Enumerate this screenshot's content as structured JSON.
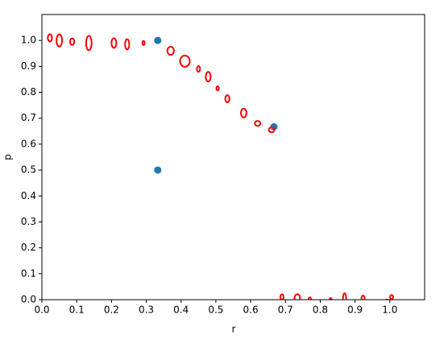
{
  "chart_data": {
    "type": "scatter",
    "xlabel": "r",
    "ylabel": "p",
    "xlim": [
      0,
      1.1
    ],
    "ylim": [
      0,
      1.1
    ],
    "xticks": [
      {
        "value": 0,
        "label": "0.0"
      },
      0.1,
      0.2,
      0.3,
      0.4,
      0.5,
      0.6,
      0.7,
      0.8,
      0.9,
      {
        "value": 1,
        "label": "1.0"
      }
    ],
    "yticks": [
      {
        "value": 0,
        "label": "0.0"
      },
      0.1,
      0.2,
      0.3,
      0.4,
      0.5,
      0.6,
      0.7,
      0.8,
      0.9,
      {
        "value": 1,
        "label": "1.0"
      }
    ],
    "points": {
      "color": "#1f77b4",
      "x": [
        0.333,
        0.333,
        0.667
      ],
      "y": [
        1.0,
        0.5,
        0.667
      ]
    },
    "ellipses": {
      "color": "#ff0000",
      "x": [
        0.023,
        0.05,
        0.087,
        0.135,
        0.207,
        0.245,
        0.292,
        0.37,
        0.411,
        0.45,
        0.478,
        0.505,
        0.533,
        0.58,
        0.62,
        0.66,
        0.69,
        0.734,
        0.77,
        0.83,
        0.87,
        0.923,
        0.992,
        1.005
      ],
      "y": [
        1.01,
        1.0,
        0.995,
        0.99,
        0.99,
        0.985,
        0.99,
        0.96,
        0.92,
        0.89,
        0.86,
        0.815,
        0.775,
        0.72,
        0.68,
        0.655,
        0.01,
        0.007,
        -0.005,
        -0.015,
        0.005,
        0.005,
        -0.01,
        0.01
      ],
      "width": [
        0.012,
        0.016,
        0.012,
        0.016,
        0.014,
        0.012,
        0.007,
        0.019,
        0.028,
        0.009,
        0.014,
        0.007,
        0.012,
        0.016,
        0.016,
        0.016,
        0.009,
        0.016,
        0.009,
        0.009,
        0.009,
        0.009,
        0.014,
        0.009
      ],
      "height": [
        0.028,
        0.047,
        0.025,
        0.056,
        0.037,
        0.04,
        0.016,
        0.031,
        0.043,
        0.022,
        0.037,
        0.016,
        0.028,
        0.034,
        0.019,
        0.019,
        0.022,
        0.028,
        0.028,
        0.043,
        0.04,
        0.022,
        0.022,
        0.016
      ]
    }
  }
}
